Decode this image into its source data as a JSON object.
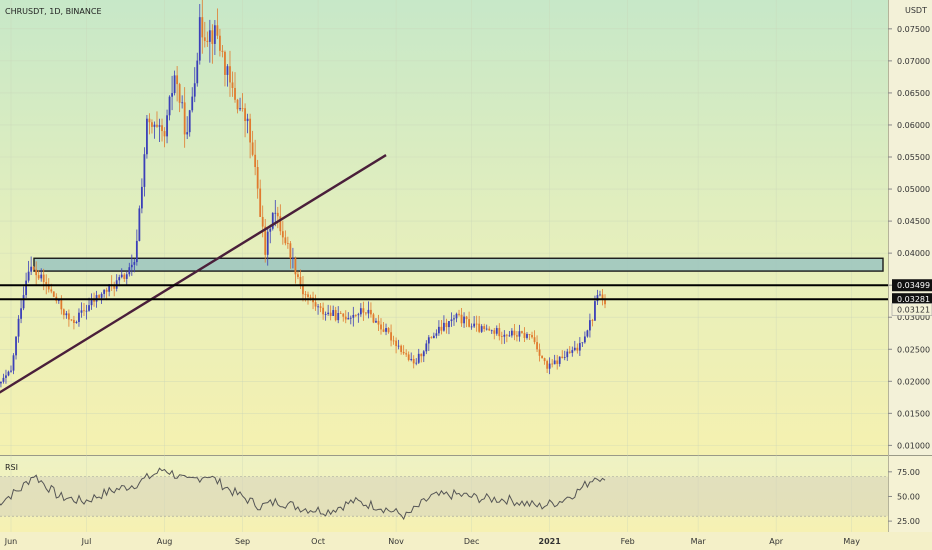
{
  "header": {
    "symbol_line": "CHRUSDT, 1D, BINANCE",
    "unit_label": "USDT"
  },
  "rsi": {
    "label": "RSI",
    "ticks": [
      "75.00",
      "50.00",
      "25.00"
    ]
  },
  "colors": {
    "up": "#3b3fb8",
    "down": "#e07a2e",
    "trendline": "#4a1f3a",
    "zone_fill": "#9ec7c0",
    "rsi_line": "#555555"
  },
  "chart_data": {
    "type": "candlestick",
    "title": "CHRUSDT, 1D, BINANCE",
    "ylabel": "USDT",
    "y_ticks": [
      "0.07500",
      "0.07000",
      "0.06500",
      "0.06000",
      "0.05500",
      "0.05000",
      "0.04500",
      "0.04000",
      "0.03500",
      "0.03000",
      "0.02500",
      "0.02000",
      "0.01500",
      "0.01000"
    ],
    "ylim": [
      0.0085,
      0.0795
    ],
    "x_ticks": [
      "Jun",
      "Jul",
      "Aug",
      "Sep",
      "Oct",
      "Nov",
      "Dec",
      "2021",
      "Feb",
      "Mar",
      "Apr",
      "May"
    ],
    "price_labels": [
      {
        "text": "0.03499",
        "value": 0.03499
      },
      {
        "text": "0.03281",
        "value": 0.03281
      },
      {
        "text": "0.03121",
        "value": 0.03121
      }
    ],
    "horizontal_lines": [
      0.03499,
      0.03281
    ],
    "resistance_zone": [
      0.0372,
      0.0392
    ],
    "trendline": {
      "start": [
        "2020-05-26",
        0.0179
      ],
      "end": [
        "2020-10-28",
        0.0553
      ]
    },
    "price_path": [
      [
        "2020-05-26",
        0.019
      ],
      [
        "2020-06-01",
        0.0215
      ],
      [
        "2020-06-05",
        0.032
      ],
      [
        "2020-06-08",
        0.038
      ],
      [
        "2020-06-15",
        0.035
      ],
      [
        "2020-06-25",
        0.029
      ],
      [
        "2020-07-05",
        0.033
      ],
      [
        "2020-07-15",
        0.036
      ],
      [
        "2020-07-20",
        0.038
      ],
      [
        "2020-07-25",
        0.06
      ],
      [
        "2020-08-01",
        0.058
      ],
      [
        "2020-08-05",
        0.068
      ],
      [
        "2020-08-10",
        0.058
      ],
      [
        "2020-08-15",
        0.075
      ],
      [
        "2020-08-22",
        0.074
      ],
      [
        "2020-08-27",
        0.066
      ],
      [
        "2020-09-03",
        0.06
      ],
      [
        "2020-09-07",
        0.05
      ],
      [
        "2020-09-10",
        0.04
      ],
      [
        "2020-09-13",
        0.047
      ],
      [
        "2020-09-20",
        0.04
      ],
      [
        "2020-09-25",
        0.034
      ],
      [
        "2020-10-02",
        0.031
      ],
      [
        "2020-10-10",
        0.03
      ],
      [
        "2020-10-20",
        0.031
      ],
      [
        "2020-11-01",
        0.026
      ],
      [
        "2020-11-08",
        0.0225
      ],
      [
        "2020-11-15",
        0.027
      ],
      [
        "2020-11-25",
        0.03
      ],
      [
        "2020-12-05",
        0.028
      ],
      [
        "2020-12-15",
        0.0275
      ],
      [
        "2020-12-25",
        0.027
      ],
      [
        "2020-12-31",
        0.022
      ],
      [
        "2021-01-07",
        0.024
      ],
      [
        "2021-01-12",
        0.025
      ],
      [
        "2021-01-18",
        0.03
      ],
      [
        "2021-01-20",
        0.034
      ],
      [
        "2021-01-24",
        0.0312
      ]
    ],
    "rsi_path": [
      [
        "2020-05-26",
        42
      ],
      [
        "2020-06-05",
        58
      ],
      [
        "2020-06-10",
        72
      ],
      [
        "2020-06-20",
        50
      ],
      [
        "2020-06-30",
        45
      ],
      [
        "2020-07-10",
        55
      ],
      [
        "2020-07-20",
        62
      ],
      [
        "2020-08-01",
        78
      ],
      [
        "2020-08-10",
        65
      ],
      [
        "2020-08-18",
        72
      ],
      [
        "2020-08-28",
        55
      ],
      [
        "2020-09-08",
        40
      ],
      [
        "2020-09-15",
        45
      ],
      [
        "2020-09-25",
        38
      ],
      [
        "2020-10-05",
        35
      ],
      [
        "2020-10-15",
        45
      ],
      [
        "2020-10-25",
        40
      ],
      [
        "2020-11-05",
        30
      ],
      [
        "2020-11-15",
        50
      ],
      [
        "2020-11-25",
        52
      ],
      [
        "2020-12-05",
        48
      ],
      [
        "2020-12-15",
        47
      ],
      [
        "2020-12-28",
        40
      ],
      [
        "2021-01-05",
        45
      ],
      [
        "2021-01-12",
        55
      ],
      [
        "2021-01-20",
        72
      ],
      [
        "2021-01-24",
        60
      ]
    ],
    "grid": true,
    "legend": "none"
  }
}
